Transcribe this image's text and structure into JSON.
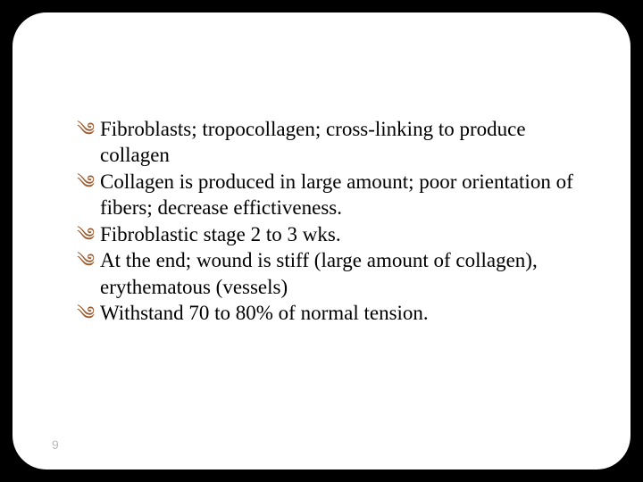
{
  "slide": {
    "background_color": "#000000",
    "panel_color": "#ffffff",
    "panel_border_radius": 38,
    "bullet_color": "#9c5b2e",
    "text_color": "#000000",
    "font_family": "Times New Roman",
    "font_size": 23,
    "page_number": "9",
    "page_number_color": "#b9b9b9",
    "bullets": [
      "Fibroblasts; tropocollagen; cross-linking to produce collagen",
      "Collagen is produced in large amount; poor orientation of fibers; decrease effictiveness.",
      "Fibroblastic stage  2 to 3 wks.",
      "At the end; wound is stiff (large amount of collagen), erythematous (vessels)",
      "Withstand 70 to 80% of normal tension."
    ]
  }
}
